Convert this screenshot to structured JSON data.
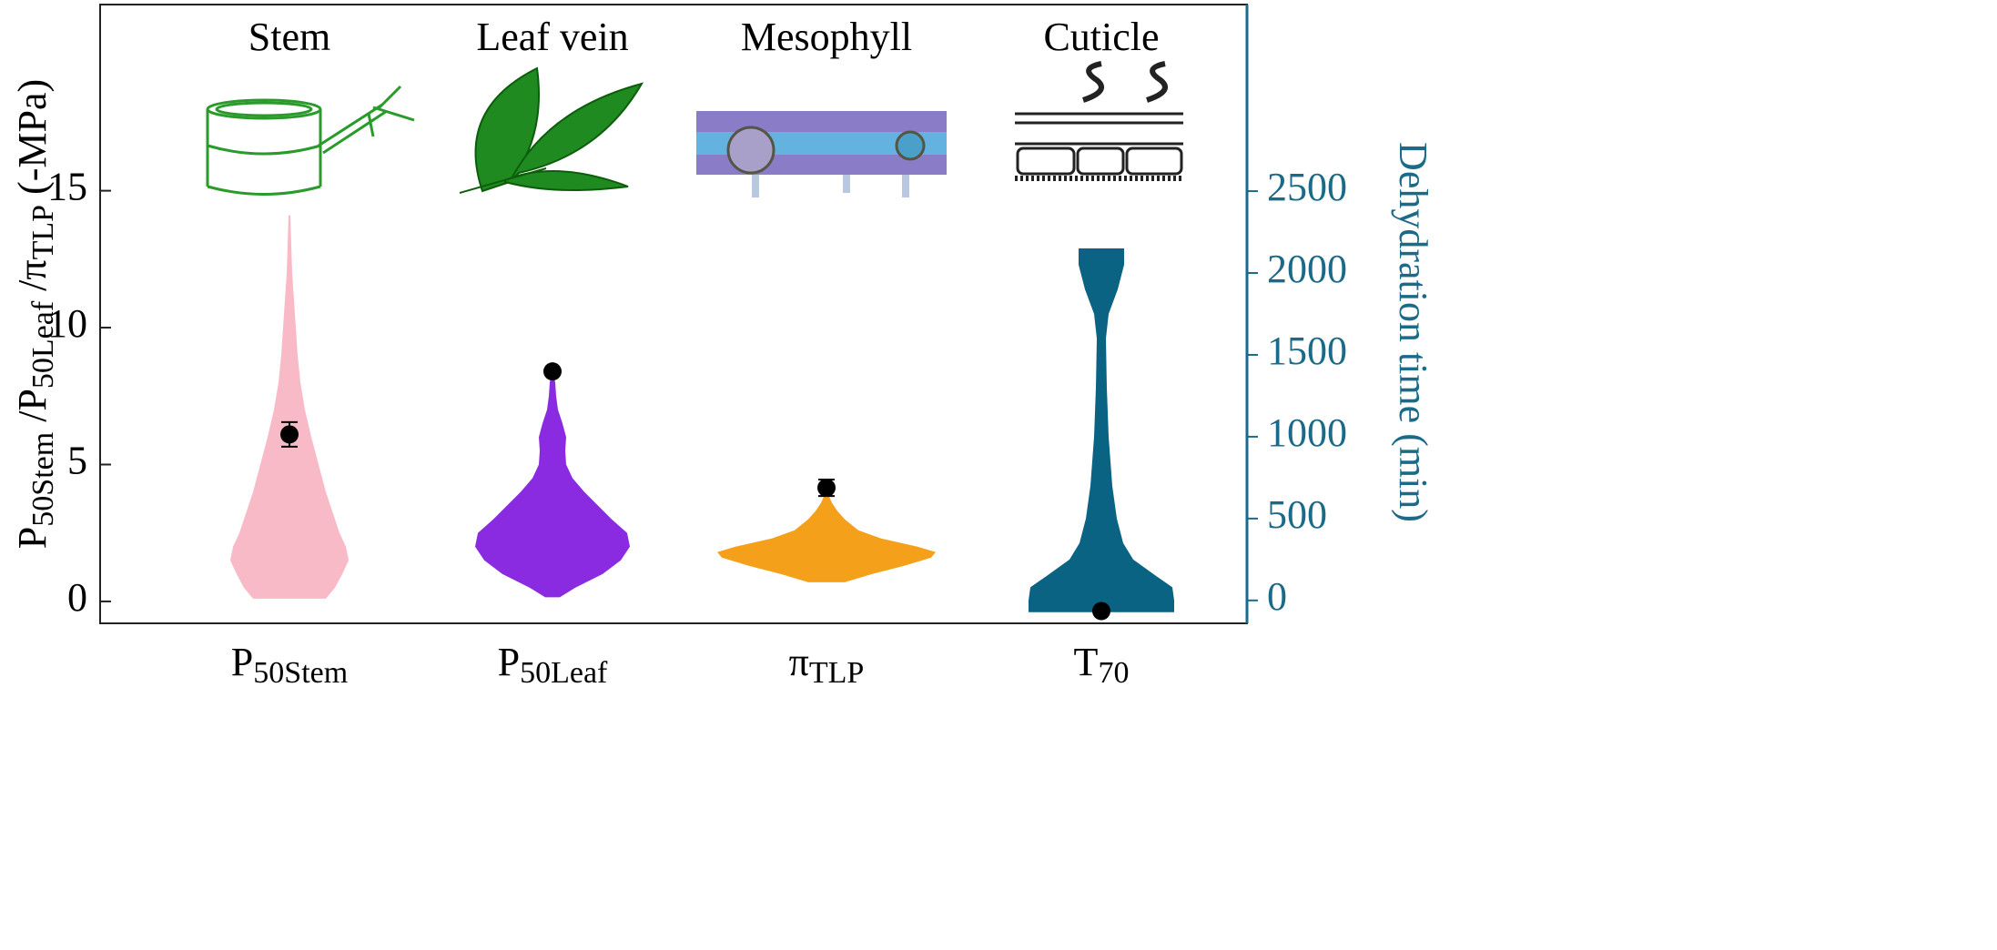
{
  "chart_data": {
    "type": "violin",
    "panel_titles": [
      "Stem",
      "Leaf vein",
      "Mesophyll",
      "Cuticle"
    ],
    "categories": [
      [
        "P",
        "50Stem"
      ],
      [
        "P",
        "50Leaf"
      ],
      [
        "π",
        "TLP"
      ],
      [
        "T",
        "70"
      ]
    ],
    "ylabel": [
      "P",
      "50Stem",
      " /P",
      "50Leaf",
      " /π",
      "TLP",
      " (-MPa)"
    ],
    "y2label": "Dehydration time (min)",
    "ylim": [
      -0.8,
      21.8
    ],
    "yticks": [
      0,
      5,
      10,
      15
    ],
    "y2lim": [
      -140,
      3640
    ],
    "y2ticks": [
      0,
      500,
      1000,
      1500,
      2000,
      2500
    ],
    "y2color": "#1a6a88",
    "violins": [
      {
        "color": "#f7bac6",
        "mean": 6.1,
        "err": 0.45,
        "y": [
          0.1,
          0.5,
          1.0,
          1.5,
          2.0,
          2.5,
          3,
          4,
          5,
          6,
          7,
          8,
          9,
          10,
          11,
          12,
          13,
          14.1
        ],
        "density": [
          40,
          50,
          58,
          65,
          62,
          55,
          50,
          40,
          32,
          24,
          17,
          12,
          9,
          7,
          5,
          3,
          2,
          1
        ]
      },
      {
        "color": "#8a2be2",
        "mean": 8.4,
        "y": [
          0.15,
          0.5,
          1.0,
          1.5,
          2.0,
          2.5,
          3.0,
          3.5,
          4.0,
          4.5,
          5.0,
          5.5,
          6.0,
          6.5,
          7,
          7.5,
          8,
          8.3
        ],
        "density": [
          8,
          25,
          55,
          75,
          85,
          82,
          65,
          50,
          35,
          22,
          15,
          14,
          15,
          11,
          6,
          4,
          3,
          1
        ]
      },
      {
        "color": "#f5a01a",
        "mean": 4.15,
        "err": 0.3,
        "y": [
          0.7,
          1.0,
          1.3,
          1.6,
          1.8,
          2.0,
          2.3,
          2.6,
          3.0,
          3.3,
          3.6,
          3.9
        ],
        "density": [
          20,
          50,
          85,
          115,
          120,
          100,
          60,
          35,
          20,
          12,
          6,
          2
        ]
      },
      {
        "color": "#0b6384",
        "mean": -65,
        "axis": "y2",
        "y": [
          -72,
          0,
          80,
          150,
          250,
          350,
          500,
          700,
          1000,
          1300,
          1600,
          1750,
          1900,
          2050,
          2150
        ],
        "density": [
          80,
          80,
          78,
          60,
          35,
          24,
          17,
          12,
          8,
          6,
          5,
          8,
          18,
          25,
          25
        ]
      }
    ]
  }
}
